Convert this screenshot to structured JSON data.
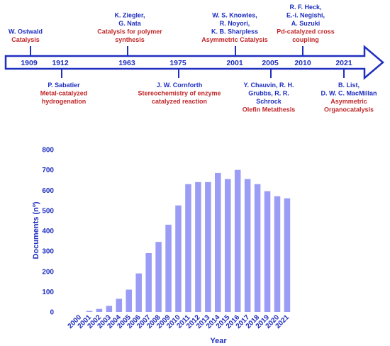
{
  "colors": {
    "blue": "#1f2fbf",
    "red": "#c0282a",
    "bar": "#9a9cf5",
    "arrow_fill": "#ffffff"
  },
  "timeline": {
    "events": [
      {
        "year": "1909",
        "position": "above",
        "names": [
          "W. Ostwald"
        ],
        "topic": [
          "Catalysis"
        ]
      },
      {
        "year": "1912",
        "position": "below",
        "names": [
          "P. Sabatier"
        ],
        "topic": [
          "Metal-catalyzed",
          "hydrogenation"
        ]
      },
      {
        "year": "1963",
        "position": "above",
        "names": [
          "K. Ziegler,",
          "G. Nata"
        ],
        "topic": [
          "Catalysis for polymer",
          "synthesis"
        ]
      },
      {
        "year": "1975",
        "position": "below",
        "names": [
          "J. W. Cornforth"
        ],
        "topic": [
          "Stereochemistry of enzyme",
          "catalyzed reaction"
        ]
      },
      {
        "year": "2001",
        "position": "above",
        "names": [
          "W. S. Knowles,",
          "R. Noyori,",
          "K. B. Sharpless"
        ],
        "topic": [
          "Asymmetric Catalysis"
        ]
      },
      {
        "year": "2005",
        "position": "below",
        "names": [
          "Y. Chauvin, R. H.",
          "Grubbs, R. R.",
          "Schrock"
        ],
        "topic": [
          "Olefin Metathesis"
        ]
      },
      {
        "year": "2010",
        "position": "above",
        "names": [
          "R. F. Heck,",
          "E.-i. Negishi,",
          "A. Suzuki"
        ],
        "topic": [
          "Pd-catalyzed cross",
          "coupling"
        ]
      },
      {
        "year": "2021",
        "position": "below",
        "names": [
          "B. List,",
          "D. W. C. MacMillan"
        ],
        "topic": [
          "Asymmetric",
          "Organocatalysis"
        ]
      }
    ]
  },
  "chart_data": {
    "type": "bar",
    "xlabel": "Year",
    "ylabel": "Documents (nº)",
    "ylim": [
      0,
      800
    ],
    "yticks": [
      0,
      100,
      200,
      300,
      400,
      500,
      600,
      700,
      800
    ],
    "grid": false,
    "categories": [
      "2000",
      "2001",
      "2002",
      "2003",
      "2004",
      "2005",
      "2006",
      "2007",
      "2008",
      "2009",
      "2010",
      "2011",
      "2012",
      "2013",
      "2014",
      "2015",
      "2016",
      "2017",
      "2018",
      "2019",
      "2020",
      "2021"
    ],
    "values": [
      0,
      5,
      15,
      30,
      65,
      110,
      190,
      290,
      345,
      430,
      525,
      630,
      640,
      640,
      685,
      655,
      700,
      655,
      630,
      595,
      570,
      560
    ]
  }
}
